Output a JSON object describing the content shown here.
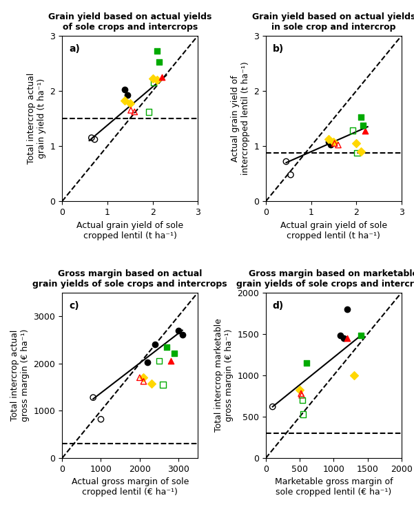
{
  "chart_data": [
    {
      "type": "scatter",
      "title": "Grain yield based on actual yields\nof sole crops and intercrops",
      "annotation": "a)",
      "x_label": "Actual grain yield of sole\ncropped lentil (t ha⁻¹)",
      "y_label": "Total intercrop actual\ngrain yield (t ha⁻¹)",
      "xlim": [
        0,
        3
      ],
      "ylim": [
        0,
        3
      ],
      "xticks": [
        0,
        1,
        2,
        3
      ],
      "yticks": [
        0,
        1,
        2,
        3
      ],
      "series": [
        {
          "type": "line",
          "line_style": "dashed",
          "color": "black",
          "x": [
            0,
            3
          ],
          "values": [
            0,
            3
          ]
        },
        {
          "type": "line",
          "line_style": "solid",
          "color": "black",
          "x": [
            0.6,
            2.3
          ],
          "values": [
            1.1,
            2.28
          ]
        },
        {
          "type": "hline",
          "line_style": "dashed",
          "color": "black",
          "values": [
            1.5
          ]
        },
        {
          "marker": "circle-open",
          "color": "black",
          "x": [
            0.65,
            0.72
          ],
          "values": [
            1.15,
            1.12
          ]
        },
        {
          "marker": "circle",
          "color": "black",
          "x": [
            1.38,
            1.44
          ],
          "values": [
            2.02,
            1.92
          ]
        },
        {
          "marker": "diamond",
          "color": "#FFD700",
          "x": [
            1.38,
            1.5
          ],
          "values": [
            1.82,
            1.78
          ]
        },
        {
          "marker": "triangle-open",
          "color": "red",
          "x": [
            1.52,
            1.6
          ],
          "values": [
            1.65,
            1.62
          ]
        },
        {
          "marker": "square-open",
          "color": "#00AA00",
          "x": [
            1.92,
            2.02
          ],
          "values": [
            1.62,
            2.15
          ]
        },
        {
          "marker": "diamond",
          "color": "#FFD700",
          "x": [
            2.0,
            2.1
          ],
          "values": [
            2.22,
            2.2
          ]
        },
        {
          "marker": "triangle",
          "color": "red",
          "x": [
            2.2
          ],
          "values": [
            2.25
          ]
        },
        {
          "marker": "square",
          "color": "#00AA00",
          "x": [
            2.1,
            2.15
          ],
          "values": [
            2.72,
            2.52
          ]
        }
      ]
    },
    {
      "type": "scatter",
      "title": "Grain yield based on actual yields\nin sole crop and intercrop",
      "annotation": "b)",
      "x_label": "Actual grain yield of sole\ncropped lentil (t ha⁻¹)",
      "y_label": "Actual grain yield of\nintercropped lentil (t ha⁻¹)",
      "xlim": [
        0,
        3
      ],
      "ylim": [
        0,
        3
      ],
      "xticks": [
        0,
        1,
        2,
        3
      ],
      "yticks": [
        0,
        1,
        2,
        3
      ],
      "series": [
        {
          "type": "line",
          "line_style": "dashed",
          "color": "black",
          "x": [
            0,
            3
          ],
          "values": [
            0,
            3
          ]
        },
        {
          "type": "line",
          "line_style": "solid",
          "color": "black",
          "x": [
            0.45,
            2.25
          ],
          "values": [
            0.7,
            1.35
          ]
        },
        {
          "type": "hline",
          "line_style": "dashed",
          "color": "black",
          "values": [
            0.88
          ]
        },
        {
          "marker": "circle-open",
          "color": "black",
          "x": [
            0.45,
            0.55
          ],
          "values": [
            0.72,
            0.48
          ]
        },
        {
          "marker": "circle",
          "color": "black",
          "x": [
            1.38,
            1.44
          ],
          "values": [
            1.08,
            1.02
          ]
        },
        {
          "marker": "diamond",
          "color": "#FFD700",
          "x": [
            1.38,
            1.5
          ],
          "values": [
            1.12,
            1.08
          ]
        },
        {
          "marker": "triangle-open",
          "color": "red",
          "x": [
            1.52,
            1.6
          ],
          "values": [
            1.05,
            1.02
          ]
        },
        {
          "marker": "square-open",
          "color": "#00AA00",
          "x": [
            1.92,
            2.02
          ],
          "values": [
            1.28,
            0.88
          ]
        },
        {
          "marker": "diamond",
          "color": "#FFD700",
          "x": [
            2.0,
            2.1
          ],
          "values": [
            1.05,
            0.9
          ]
        },
        {
          "marker": "triangle",
          "color": "red",
          "x": [
            2.2
          ],
          "values": [
            1.28
          ]
        },
        {
          "marker": "square",
          "color": "#00AA00",
          "x": [
            2.1,
            2.15
          ],
          "values": [
            1.52,
            1.38
          ]
        }
      ]
    },
    {
      "type": "scatter",
      "title": "Gross margin based on actual\ngrain yields of sole crops and intercrops",
      "annotation": "c)",
      "x_label": "Actual gross margin of sole\ncropped lentil (€ ha⁻¹)",
      "y_label": "Total intercrop actual\ngross margin (€ ha⁻¹)",
      "xlim": [
        0,
        3500
      ],
      "ylim": [
        0,
        3500
      ],
      "xticks": [
        0,
        1000,
        2000,
        3000
      ],
      "yticks": [
        0,
        1000,
        2000,
        3000
      ],
      "series": [
        {
          "type": "line",
          "line_style": "dashed",
          "color": "black",
          "x": [
            0,
            3500
          ],
          "values": [
            0,
            3500
          ]
        },
        {
          "type": "line",
          "line_style": "solid",
          "color": "black",
          "x": [
            800,
            3100
          ],
          "values": [
            1250,
            2700
          ]
        },
        {
          "type": "hline",
          "line_style": "dashed",
          "color": "black",
          "values": [
            300
          ]
        },
        {
          "marker": "circle-open",
          "color": "black",
          "x": [
            800,
            1000
          ],
          "values": [
            1280,
            820
          ]
        },
        {
          "marker": "diamond",
          "color": "#FFD700",
          "x": [
            2100,
            2300
          ],
          "values": [
            1700,
            1580
          ]
        },
        {
          "marker": "triangle-open",
          "color": "red",
          "x": [
            2000,
            2100
          ],
          "values": [
            1700,
            1620
          ]
        },
        {
          "marker": "square-open",
          "color": "#00AA00",
          "x": [
            2500,
            2600
          ],
          "values": [
            2050,
            1550
          ]
        },
        {
          "marker": "circle",
          "color": "black",
          "x": [
            2200,
            2400
          ],
          "values": [
            2020,
            2400
          ]
        },
        {
          "marker": "triangle",
          "color": "red",
          "x": [
            2800
          ],
          "values": [
            2050
          ]
        },
        {
          "marker": "square",
          "color": "#00AA00",
          "x": [
            2700,
            2900
          ],
          "values": [
            2350,
            2220
          ]
        },
        {
          "marker": "circle",
          "color": "black",
          "x": [
            3000,
            3100
          ],
          "values": [
            2700,
            2600
          ]
        }
      ]
    },
    {
      "type": "scatter",
      "title": "Gross margin based on marketable\ngrain yields of sole crops and intercrops",
      "annotation": "d)",
      "x_label": "Marketable gross margin of\nsole cropped lentil (€ ha⁻¹)",
      "y_label": "Total intercrop marketable\ngross margin (€ ha⁻¹)",
      "xlim": [
        0,
        2000
      ],
      "ylim": [
        0,
        2000
      ],
      "xticks": [
        0,
        500,
        1000,
        1500,
        2000
      ],
      "yticks": [
        0,
        500,
        1000,
        1500,
        2000
      ],
      "series": [
        {
          "type": "line",
          "line_style": "dashed",
          "color": "black",
          "x": [
            0,
            2000
          ],
          "values": [
            0,
            2000
          ]
        },
        {
          "type": "line",
          "line_style": "solid",
          "color": "black",
          "x": [
            100,
            1400
          ],
          "values": [
            620,
            1480
          ]
        },
        {
          "type": "hline",
          "line_style": "dashed",
          "color": "black",
          "values": [
            300
          ]
        },
        {
          "marker": "circle-open",
          "color": "black",
          "x": [
            100
          ],
          "values": [
            620
          ]
        },
        {
          "marker": "diamond",
          "color": "#FFD700",
          "x": [
            500
          ],
          "values": [
            820
          ]
        },
        {
          "marker": "triangle-open",
          "color": "red",
          "x": [
            520,
            530
          ],
          "values": [
            780,
            760
          ]
        },
        {
          "marker": "square-open",
          "color": "#00AA00",
          "x": [
            540,
            550
          ],
          "values": [
            700,
            530
          ]
        },
        {
          "marker": "square",
          "color": "#00AA00",
          "x": [
            600
          ],
          "values": [
            1150
          ]
        },
        {
          "marker": "circle",
          "color": "black",
          "x": [
            1100,
            1150,
            1200
          ],
          "values": [
            1480,
            1450,
            1800
          ]
        },
        {
          "marker": "triangle",
          "color": "red",
          "x": [
            1200
          ],
          "values": [
            1450
          ]
        },
        {
          "marker": "diamond",
          "color": "#FFD700",
          "x": [
            1300
          ],
          "values": [
            1000
          ]
        },
        {
          "marker": "square",
          "color": "#00AA00",
          "x": [
            1400
          ],
          "values": [
            1480
          ]
        }
      ]
    }
  ]
}
